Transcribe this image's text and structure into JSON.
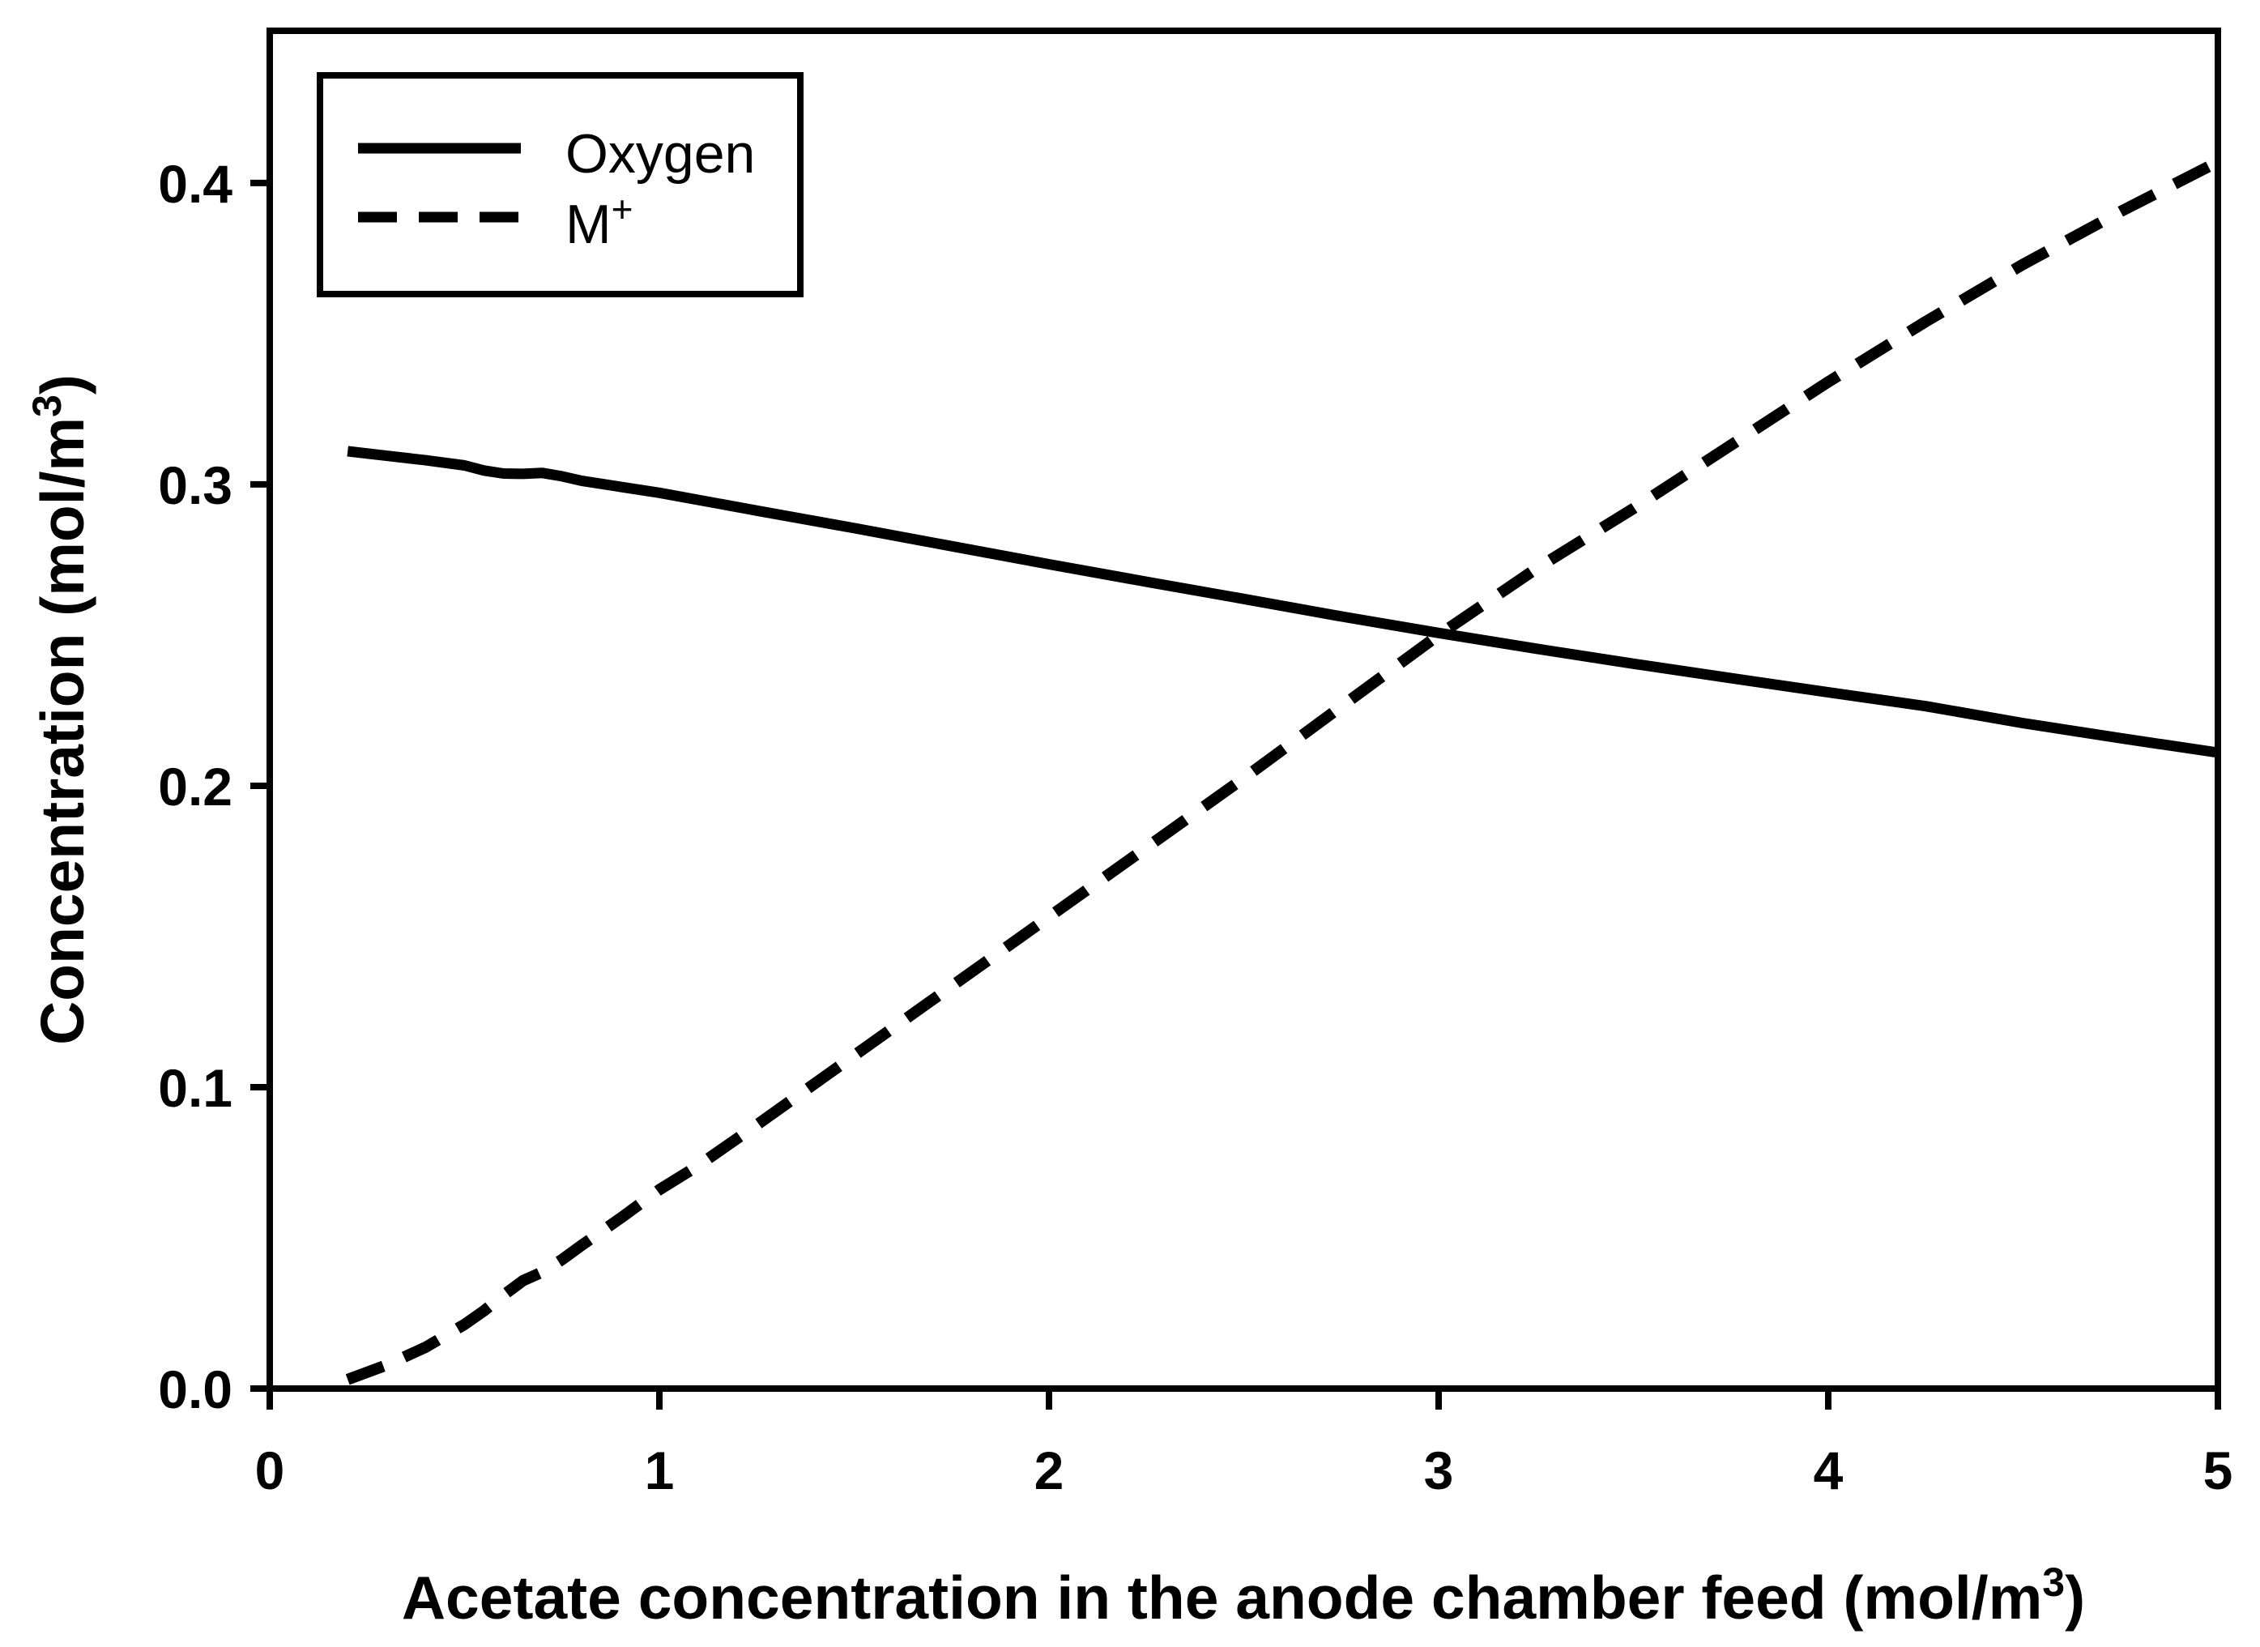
{
  "figure": {
    "background": "#ffffff",
    "line_color": "#000000"
  },
  "chart_data": {
    "type": "line",
    "title": "",
    "xlabel": {
      "main": "Acetate concentration in the anode chamber feed (mol/m",
      "sup": "3",
      "end": ")"
    },
    "ylabel": {
      "main": "Concentration (mol/m",
      "sup": "3",
      "end": ")"
    },
    "x_axis": {
      "min": 0,
      "max": 5,
      "ticks": [
        0,
        1,
        2,
        3,
        4,
        5
      ],
      "tick_labels": [
        "0",
        "1",
        "2",
        "3",
        "4",
        "5"
      ]
    },
    "y_axis": {
      "min": 0,
      "max": 0.4505,
      "ticks": [
        0.0,
        0.1,
        0.2,
        0.3,
        0.4
      ],
      "tick_labels": [
        "0.0",
        "0.1",
        "0.2",
        "0.3",
        "0.4"
      ]
    },
    "grid": false,
    "legend": {
      "position": "upper-left",
      "items": [
        {
          "name": "Oxygen",
          "sup": "",
          "style": "solid"
        },
        {
          "name": "M",
          "sup": "+",
          "style": "dashed"
        }
      ]
    },
    "series": [
      {
        "name": "Oxygen",
        "style": "solid",
        "points": [
          [
            0.2,
            0.311
          ],
          [
            0.3,
            0.3095
          ],
          [
            0.4,
            0.308
          ],
          [
            0.5,
            0.3063
          ],
          [
            0.55,
            0.3046
          ],
          [
            0.6,
            0.3036
          ],
          [
            0.65,
            0.3035
          ],
          [
            0.7,
            0.3038
          ],
          [
            0.75,
            0.3027
          ],
          [
            0.8,
            0.3012
          ],
          [
            0.9,
            0.2992
          ],
          [
            1.0,
            0.2972
          ],
          [
            1.25,
            0.2913
          ],
          [
            1.5,
            0.2855
          ],
          [
            1.75,
            0.2795
          ],
          [
            2.0,
            0.2735
          ],
          [
            2.25,
            0.2677
          ],
          [
            2.5,
            0.262
          ],
          [
            2.75,
            0.2562
          ],
          [
            3.0,
            0.2507
          ],
          [
            3.25,
            0.2455
          ],
          [
            3.5,
            0.2405
          ],
          [
            3.75,
            0.2357
          ],
          [
            4.0,
            0.231
          ],
          [
            4.25,
            0.2264
          ],
          [
            4.5,
            0.2208
          ],
          [
            4.75,
            0.2158
          ],
          [
            5.0,
            0.211
          ]
        ]
      },
      {
        "name": "M+",
        "style": "dashed",
        "points": [
          [
            0.2,
            0.003
          ],
          [
            0.3,
            0.0078
          ],
          [
            0.4,
            0.0137
          ],
          [
            0.5,
            0.0213
          ],
          [
            0.55,
            0.0258
          ],
          [
            0.6,
            0.031
          ],
          [
            0.65,
            0.0358
          ],
          [
            0.7,
            0.0387
          ],
          [
            0.75,
            0.0428
          ],
          [
            0.8,
            0.0475
          ],
          [
            0.9,
            0.0565
          ],
          [
            1.0,
            0.066
          ],
          [
            1.1,
            0.074
          ],
          [
            1.25,
            0.0875
          ],
          [
            1.5,
            0.1105
          ],
          [
            1.75,
            0.1335
          ],
          [
            2.0,
            0.1565
          ],
          [
            2.25,
            0.1795
          ],
          [
            2.5,
            0.2025
          ],
          [
            2.75,
            0.2263
          ],
          [
            3.0,
            0.25
          ],
          [
            3.25,
            0.272
          ],
          [
            3.5,
            0.292
          ],
          [
            3.75,
            0.313
          ],
          [
            4.0,
            0.334
          ],
          [
            4.25,
            0.354
          ],
          [
            4.5,
            0.373
          ],
          [
            4.75,
            0.3905
          ],
          [
            5.0,
            0.407
          ]
        ]
      }
    ]
  }
}
